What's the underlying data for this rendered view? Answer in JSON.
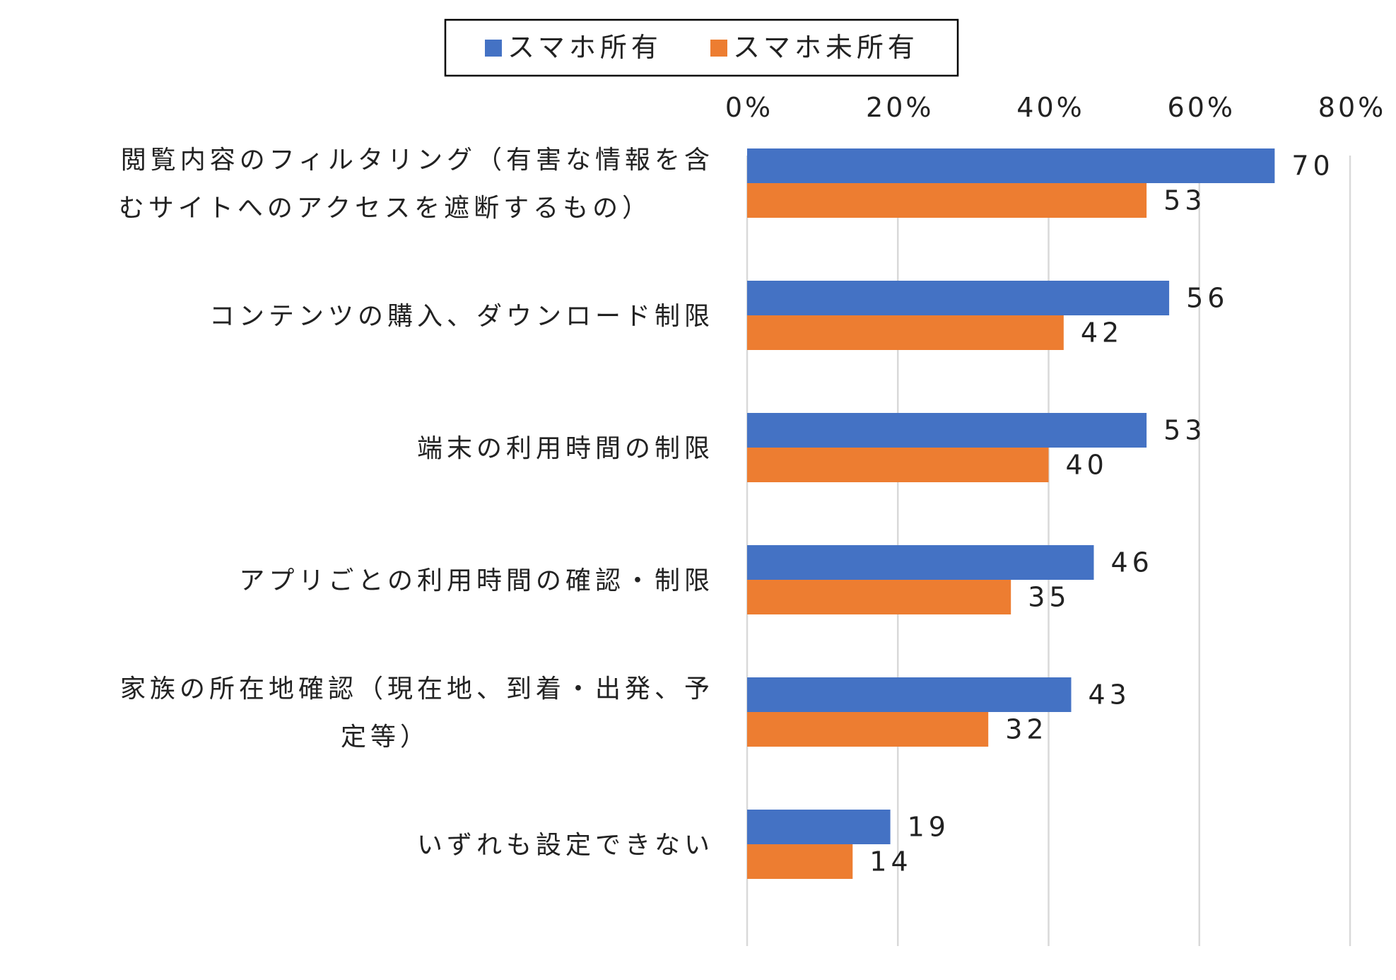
{
  "chart_data": {
    "type": "bar",
    "orientation": "horizontal",
    "title": "",
    "xlabel": "",
    "ylabel": "",
    "xlim": [
      0,
      80
    ],
    "x_ticks": [
      "0%",
      "20%",
      "40%",
      "60%",
      "80%"
    ],
    "grid": true,
    "legend_position": "top",
    "categories": [
      [
        "閲覧内容のフィルタリング（有害な情報を含",
        "むサイトへのアクセスを遮断するもの）"
      ],
      [
        "コンテンツの購入、ダウンロード制限"
      ],
      [
        "端末の利用時間の制限"
      ],
      [
        "アプリごとの利用時間の確認・制限"
      ],
      [
        "家族の所在地確認（現在地、到着・出発、予",
        "定等）"
      ],
      [
        "いずれも設定できない"
      ]
    ],
    "series": [
      {
        "name": "スマホ所有",
        "color": "#4472C4",
        "values": [
          70,
          56,
          53,
          46,
          43,
          19
        ]
      },
      {
        "name": "スマホ未所有",
        "color": "#ED7D31",
        "values": [
          53,
          42,
          40,
          35,
          32,
          14
        ]
      }
    ]
  }
}
